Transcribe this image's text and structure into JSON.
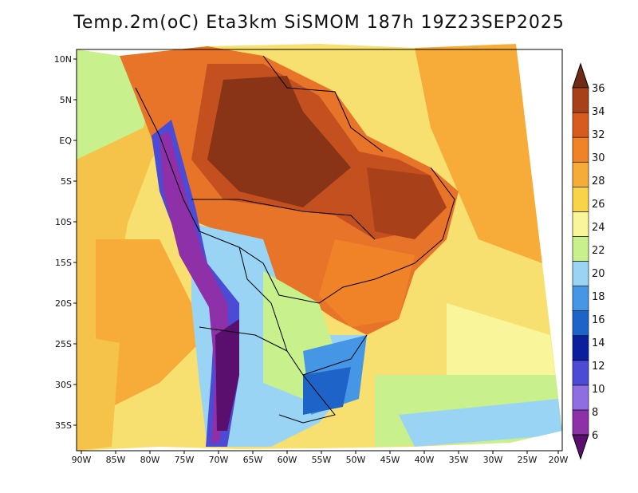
{
  "title": "Temp.2m(oC) Eta3km SiSMOM 187h 19Z23SEP2025",
  "lat_labels": [
    "10N",
    "5N",
    "EQ",
    "5S",
    "10S",
    "15S",
    "20S",
    "25S",
    "30S",
    "35S"
  ],
  "lon_labels": [
    "90W",
    "85W",
    "80W",
    "75W",
    "70W",
    "65W",
    "60W",
    "55W",
    "50W",
    "45W",
    "40W",
    "35W",
    "30W",
    "25W",
    "20W"
  ],
  "colorbar": {
    "levels": [
      "6",
      "8",
      "10",
      "12",
      "14",
      "16",
      "18",
      "20",
      "22",
      "24",
      "26",
      "28",
      "30",
      "32",
      "34",
      "36"
    ],
    "colors": [
      "#5a0e6e",
      "#8e30a8",
      "#8e6ee0",
      "#4b4bd6",
      "#0a1e9e",
      "#1e64c8",
      "#4696e6",
      "#9ad4f5",
      "#c8f08c",
      "#f8f59a",
      "#fad448",
      "#f7ac3a",
      "#f08328",
      "#d85a1e",
      "#a8401a",
      "#6e2a14"
    ]
  }
}
